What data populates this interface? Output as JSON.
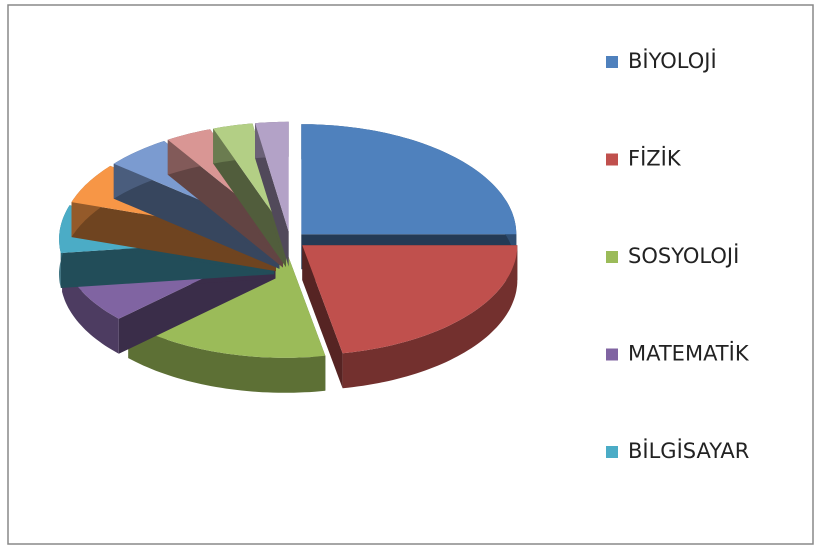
{
  "chart_data": {
    "type": "pie3d",
    "categories": [
      "BİYOLOJİ",
      "FİZİK",
      "SOSYOLOJİ",
      "MATEMATİK",
      "BİLGİSAYAR",
      null,
      null,
      null,
      null,
      null
    ],
    "values": [
      25,
      22,
      16,
      10,
      7,
      6,
      5,
      3.5,
      3,
      2.5
    ],
    "colors": [
      "#4f81bd",
      "#c0504d",
      "#9bbb59",
      "#8064a2",
      "#4bacc6",
      "#f79646",
      "#7b9bd0",
      "#d99694",
      "#b3cf85",
      "#b3a2c7"
    ],
    "legend": "right"
  }
}
